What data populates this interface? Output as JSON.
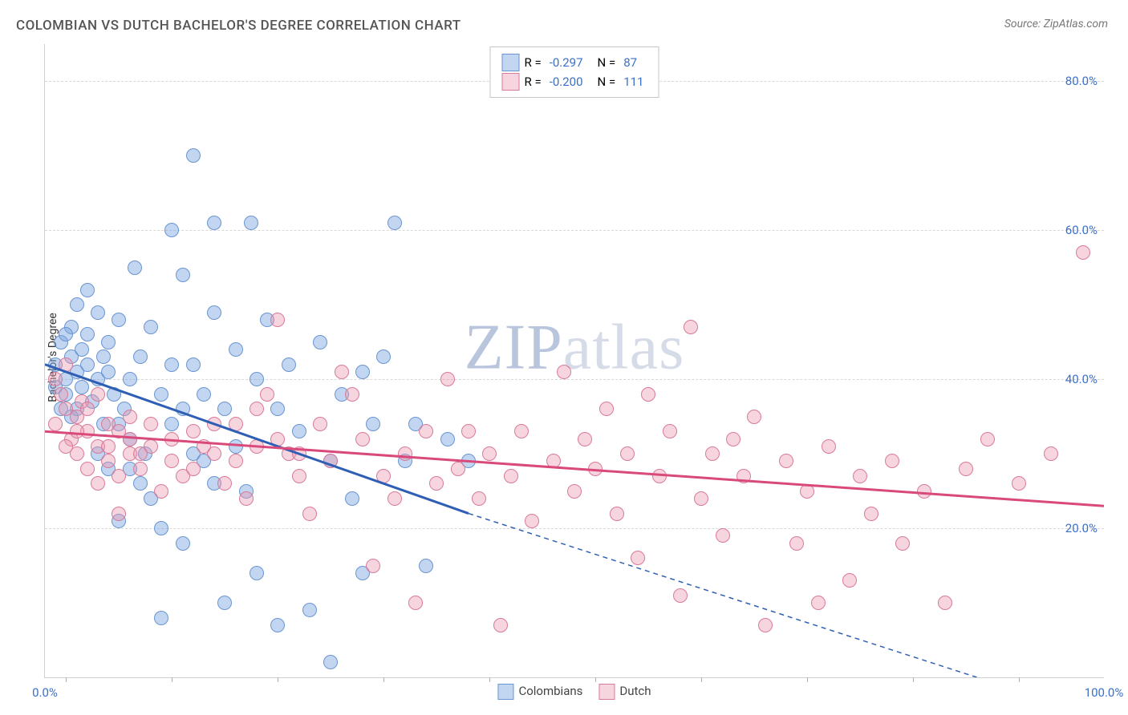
{
  "title": "COLOMBIAN VS DUTCH BACHELOR'S DEGREE CORRELATION CHART",
  "source_prefix": "Source: ",
  "source_name": "ZipAtlas.com",
  "watermark_a": "ZIP",
  "watermark_b": "atlas",
  "ylabel": "Bachelor's Degree",
  "chart": {
    "type": "scatter",
    "xlim": [
      0,
      100
    ],
    "ylim": [
      0,
      85
    ],
    "yticks": [
      20,
      40,
      60,
      80
    ],
    "ytick_labels": [
      "20.0%",
      "40.0%",
      "60.0%",
      "80.0%"
    ],
    "xtick_marks": [
      2,
      12,
      22,
      32,
      42,
      52,
      62,
      72,
      82,
      92
    ],
    "xtick_labels": [
      {
        "pos": 0,
        "text": "0.0%"
      },
      {
        "pos": 100,
        "text": "100.0%"
      }
    ],
    "background_color": "#ffffff",
    "grid_color": "#d8d8d8",
    "series": [
      {
        "name": "Colombians",
        "fill": "rgba(120,165,225,0.45)",
        "stroke": "#6a95d0",
        "line_color": "#2f5fb5",
        "line_width": 3,
        "R": "-0.297",
        "N": "87",
        "trend": {
          "x1": 0,
          "y1": 42,
          "x2_solid": 40,
          "y2_solid": 22,
          "x2_dash": 88,
          "y2_dash": 0
        },
        "radius": 9,
        "points": [
          [
            1,
            42
          ],
          [
            1.5,
            45
          ],
          [
            2,
            40
          ],
          [
            2,
            38
          ],
          [
            2.5,
            43
          ],
          [
            2.5,
            47
          ],
          [
            3,
            41
          ],
          [
            3,
            36
          ],
          [
            3.5,
            44
          ],
          [
            3.5,
            39
          ],
          [
            4,
            42
          ],
          [
            4,
            46
          ],
          [
            4.5,
            37
          ],
          [
            5,
            40
          ],
          [
            5,
            30
          ],
          [
            5.5,
            43
          ],
          [
            5.5,
            34
          ],
          [
            6,
            41
          ],
          [
            6,
            28
          ],
          [
            6.5,
            38
          ],
          [
            7,
            34
          ],
          [
            7,
            21
          ],
          [
            7.5,
            36
          ],
          [
            8,
            40
          ],
          [
            8,
            32
          ],
          [
            8.5,
            55
          ],
          [
            9,
            43
          ],
          [
            9.5,
            30
          ],
          [
            10,
            47
          ],
          [
            10,
            24
          ],
          [
            11,
            38
          ],
          [
            11,
            8
          ],
          [
            12,
            60
          ],
          [
            12,
            34
          ],
          [
            13,
            54
          ],
          [
            13,
            18
          ],
          [
            14,
            70
          ],
          [
            14,
            42
          ],
          [
            15,
            38
          ],
          [
            15,
            29
          ],
          [
            16,
            61
          ],
          [
            16,
            49
          ],
          [
            17,
            36
          ],
          [
            17,
            10
          ],
          [
            18,
            44
          ],
          [
            18,
            31
          ],
          [
            19,
            25
          ],
          [
            19.5,
            61
          ],
          [
            20,
            40
          ],
          [
            20,
            14
          ],
          [
            21,
            48
          ],
          [
            22,
            36
          ],
          [
            22,
            7
          ],
          [
            23,
            42
          ],
          [
            24,
            33
          ],
          [
            25,
            9
          ],
          [
            26,
            45
          ],
          [
            27,
            29
          ],
          [
            27,
            2
          ],
          [
            28,
            38
          ],
          [
            29,
            24
          ],
          [
            30,
            41
          ],
          [
            30,
            14
          ],
          [
            31,
            34
          ],
          [
            32,
            43
          ],
          [
            33,
            61
          ],
          [
            34,
            29
          ],
          [
            35,
            34
          ],
          [
            36,
            15
          ],
          [
            38,
            32
          ],
          [
            40,
            29
          ],
          [
            3,
            50
          ],
          [
            4,
            52
          ],
          [
            5,
            49
          ],
          [
            2,
            46
          ],
          [
            1,
            39
          ],
          [
            1.5,
            36
          ],
          [
            2.5,
            35
          ],
          [
            6,
            45
          ],
          [
            7,
            48
          ],
          [
            8,
            28
          ],
          [
            9,
            26
          ],
          [
            11,
            20
          ],
          [
            12,
            42
          ],
          [
            13,
            36
          ],
          [
            14,
            30
          ],
          [
            16,
            26
          ]
        ]
      },
      {
        "name": "Dutch",
        "fill": "rgba(235,150,175,0.4)",
        "stroke": "#d97a9a",
        "line_color": "#d94a7a",
        "line_width": 3,
        "R": "-0.200",
        "N": "111",
        "trend": {
          "x1": 0,
          "y1": 33,
          "x2_solid": 100,
          "y2_solid": 23
        },
        "radius": 9,
        "points": [
          [
            1,
            40
          ],
          [
            1.5,
            38
          ],
          [
            2,
            36
          ],
          [
            2,
            42
          ],
          [
            2.5,
            32
          ],
          [
            3,
            35
          ],
          [
            3,
            30
          ],
          [
            3.5,
            37
          ],
          [
            4,
            33
          ],
          [
            4,
            28
          ],
          [
            5,
            31
          ],
          [
            5,
            26
          ],
          [
            6,
            34
          ],
          [
            6,
            29
          ],
          [
            7,
            27
          ],
          [
            7,
            22
          ],
          [
            8,
            30
          ],
          [
            8,
            32
          ],
          [
            9,
            28
          ],
          [
            10,
            31
          ],
          [
            11,
            25
          ],
          [
            12,
            29
          ],
          [
            13,
            27
          ],
          [
            14,
            33
          ],
          [
            15,
            31
          ],
          [
            16,
            34
          ],
          [
            17,
            26
          ],
          [
            18,
            29
          ],
          [
            19,
            24
          ],
          [
            20,
            31
          ],
          [
            21,
            38
          ],
          [
            22,
            48
          ],
          [
            23,
            30
          ],
          [
            24,
            27
          ],
          [
            25,
            22
          ],
          [
            26,
            34
          ],
          [
            27,
            29
          ],
          [
            28,
            41
          ],
          [
            29,
            38
          ],
          [
            30,
            32
          ],
          [
            31,
            15
          ],
          [
            32,
            27
          ],
          [
            33,
            24
          ],
          [
            34,
            30
          ],
          [
            35,
            10
          ],
          [
            36,
            33
          ],
          [
            37,
            26
          ],
          [
            38,
            40
          ],
          [
            39,
            28
          ],
          [
            40,
            33
          ],
          [
            41,
            24
          ],
          [
            42,
            30
          ],
          [
            43,
            7
          ],
          [
            44,
            27
          ],
          [
            45,
            33
          ],
          [
            46,
            21
          ],
          [
            48,
            29
          ],
          [
            49,
            41
          ],
          [
            50,
            25
          ],
          [
            51,
            32
          ],
          [
            52,
            28
          ],
          [
            53,
            36
          ],
          [
            54,
            22
          ],
          [
            55,
            30
          ],
          [
            56,
            16
          ],
          [
            57,
            38
          ],
          [
            58,
            27
          ],
          [
            59,
            33
          ],
          [
            60,
            11
          ],
          [
            61,
            47
          ],
          [
            62,
            24
          ],
          [
            63,
            30
          ],
          [
            64,
            19
          ],
          [
            65,
            32
          ],
          [
            66,
            27
          ],
          [
            67,
            35
          ],
          [
            68,
            7
          ],
          [
            70,
            29
          ],
          [
            71,
            18
          ],
          [
            72,
            25
          ],
          [
            73,
            10
          ],
          [
            74,
            31
          ],
          [
            76,
            13
          ],
          [
            77,
            27
          ],
          [
            78,
            22
          ],
          [
            80,
            29
          ],
          [
            81,
            18
          ],
          [
            83,
            25
          ],
          [
            85,
            10
          ],
          [
            87,
            28
          ],
          [
            89,
            32
          ],
          [
            92,
            26
          ],
          [
            95,
            30
          ],
          [
            98,
            57
          ],
          [
            1,
            34
          ],
          [
            2,
            31
          ],
          [
            3,
            33
          ],
          [
            4,
            36
          ],
          [
            5,
            38
          ],
          [
            6,
            31
          ],
          [
            7,
            33
          ],
          [
            8,
            35
          ],
          [
            9,
            30
          ],
          [
            10,
            34
          ],
          [
            12,
            32
          ],
          [
            14,
            28
          ],
          [
            16,
            30
          ],
          [
            18,
            34
          ],
          [
            20,
            36
          ],
          [
            22,
            32
          ],
          [
            24,
            30
          ]
        ]
      }
    ]
  },
  "legend_bottom": [
    {
      "label": "Colombians",
      "fill": "rgba(120,165,225,0.45)",
      "stroke": "#6a95d0"
    },
    {
      "label": "Dutch",
      "fill": "rgba(235,150,175,0.4)",
      "stroke": "#d97a9a"
    }
  ],
  "legend_top": {
    "r_label": "R =",
    "n_label": "N ="
  }
}
